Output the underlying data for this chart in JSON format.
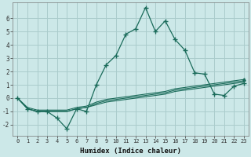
{
  "xlabel": "Humidex (Indice chaleur)",
  "bg_color": "#cce8e8",
  "grid_color": "#aacccc",
  "line_color": "#1a6b5a",
  "x_values": [
    0,
    1,
    2,
    3,
    4,
    5,
    6,
    7,
    8,
    9,
    10,
    11,
    12,
    13,
    14,
    15,
    16,
    17,
    18,
    19,
    20,
    21,
    22,
    23
  ],
  "y_main": [
    0,
    -0.8,
    -1.0,
    -1.0,
    -1.5,
    -2.3,
    -0.8,
    -1.0,
    1.0,
    2.5,
    3.2,
    4.8,
    5.2,
    6.8,
    5.0,
    5.8,
    4.4,
    3.6,
    1.9,
    1.8,
    0.3,
    0.2,
    0.9,
    1.1
  ],
  "y_trend1": [
    0,
    -0.8,
    -1.0,
    -1.0,
    -1.0,
    -1.0,
    -0.8,
    -0.7,
    -0.5,
    -0.3,
    -0.2,
    -0.1,
    0.0,
    0.1,
    0.2,
    0.3,
    0.5,
    0.6,
    0.7,
    0.8,
    0.9,
    1.0,
    1.1,
    1.2
  ],
  "y_trend2": [
    0,
    -0.8,
    -1.0,
    -1.0,
    -1.0,
    -1.0,
    -0.8,
    -0.7,
    -0.4,
    -0.2,
    -0.1,
    0.0,
    0.1,
    0.2,
    0.3,
    0.4,
    0.6,
    0.7,
    0.8,
    0.9,
    1.0,
    1.1,
    1.2,
    1.3
  ],
  "y_trend3": [
    0,
    -0.7,
    -0.9,
    -0.9,
    -0.9,
    -0.9,
    -0.7,
    -0.6,
    -0.3,
    -0.1,
    0.0,
    0.1,
    0.2,
    0.3,
    0.4,
    0.5,
    0.7,
    0.8,
    0.9,
    1.0,
    1.1,
    1.2,
    1.3,
    1.4
  ],
  "ylim": [
    -2.8,
    7.2
  ],
  "xlim": [
    -0.5,
    23.5
  ],
  "yticks": [
    -2,
    -1,
    0,
    1,
    2,
    3,
    4,
    5,
    6
  ],
  "xticks": [
    0,
    1,
    2,
    3,
    4,
    5,
    6,
    7,
    8,
    9,
    10,
    11,
    12,
    13,
    14,
    15,
    16,
    17,
    18,
    19,
    20,
    21,
    22,
    23
  ]
}
